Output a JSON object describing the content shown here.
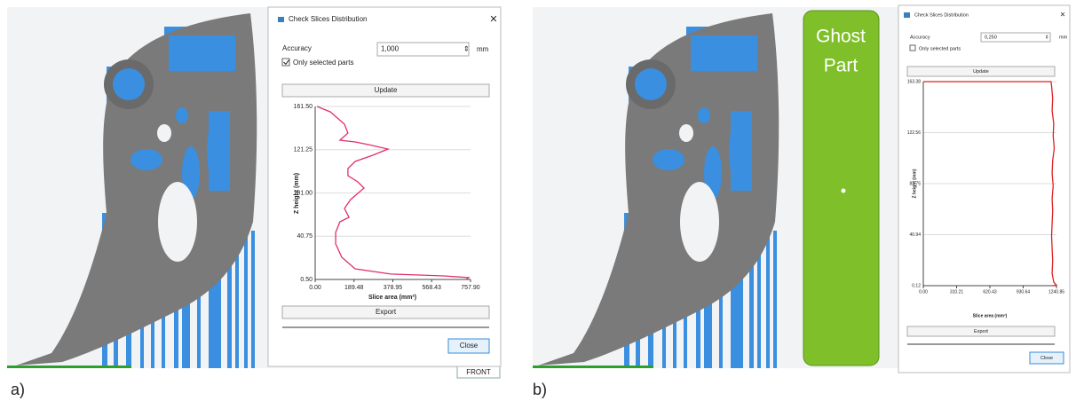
{
  "panels": [
    {
      "label": "a)",
      "view_label": "FRONT",
      "dialog": {
        "title": "Check Slices Distribution",
        "close_icon": "×",
        "accuracy_label": "Accuracy",
        "accuracy_value": "1,000",
        "unit": "mm",
        "checkbox_label": "Only selected parts",
        "checked": true,
        "update": "Update",
        "export": "Export",
        "close": "Close"
      }
    },
    {
      "label": "b)",
      "ghost_label": [
        "Ghost",
        "Part"
      ],
      "dialog": {
        "title": "Check Slices Distribution",
        "close_icon": "×",
        "accuracy_label": "Accuracy",
        "accuracy_value": "0,250",
        "unit": "mm",
        "checkbox_label": "Only selected parts",
        "checked": false,
        "update": "Update",
        "export": "Export",
        "close": "Close"
      }
    }
  ],
  "chart_data": [
    {
      "type": "line",
      "x_label": "Slice area (mm²)",
      "y_label": "Z height (mm)",
      "grid": true,
      "xlim": [
        0,
        757.9
      ],
      "ylim": [
        0.5,
        161.5
      ],
      "xticks": [
        {
          "value": 0,
          "label": "0.00"
        },
        189.48,
        378.95,
        568.43,
        {
          "value": 757.9,
          "label": "757.90"
        }
      ],
      "yticks": [
        {
          "value": 0.5,
          "label": "0.50"
        },
        40.75,
        {
          "value": 81,
          "label": "81.00"
        },
        121.25,
        {
          "value": 161.5,
          "label": "161.50"
        }
      ],
      "series": [
        {
          "color": "#e0306a",
          "x": [
            9,
            74,
            143,
            160,
            121,
            195,
            260,
            355,
            281,
            195,
            160,
            160,
            208,
            238,
            208,
            173,
            143,
            165,
            121,
            100,
            100,
            130,
            195,
            368,
            628,
            749,
            736
          ],
          "values": [
            161.5,
            156.5,
            145,
            136.7,
            130.1,
            128.5,
            126,
            121.9,
            116.1,
            110.3,
            103.7,
            97.1,
            91.3,
            85.5,
            80.6,
            74.8,
            66.6,
            58.3,
            54.2,
            44.3,
            33.5,
            21.1,
            10.4,
            5.5,
            3.8,
            2.2,
            0.5
          ]
        }
      ]
    },
    {
      "type": "line",
      "x_label": "Slice area (mm²)",
      "y_label": "Z height (mm)",
      "grid": true,
      "xlim": [
        0,
        1240.85
      ],
      "ylim": [
        0.12,
        163.38
      ],
      "xticks": [
        {
          "value": 0,
          "label": "0.00"
        },
        310.21,
        620.43,
        930.64,
        1240.85
      ],
      "yticks": [
        0.12,
        40.94,
        81.75,
        122.56,
        163.38
      ],
      "series": [
        {
          "color": "#e02020",
          "x": [
            0,
            1190,
            1195,
            1205,
            1200,
            1215,
            1210,
            1220,
            1205,
            1200,
            1210,
            1200,
            1205,
            1200,
            1195,
            1200,
            1205,
            1200,
            1215,
            1240.85,
            1200
          ],
          "values": [
            163.38,
            163.38,
            160,
            150,
            140,
            130,
            120,
            110,
            100,
            90,
            80,
            70,
            60,
            50,
            40,
            30,
            20,
            10,
            3,
            0.5,
            0.12
          ]
        }
      ]
    }
  ]
}
